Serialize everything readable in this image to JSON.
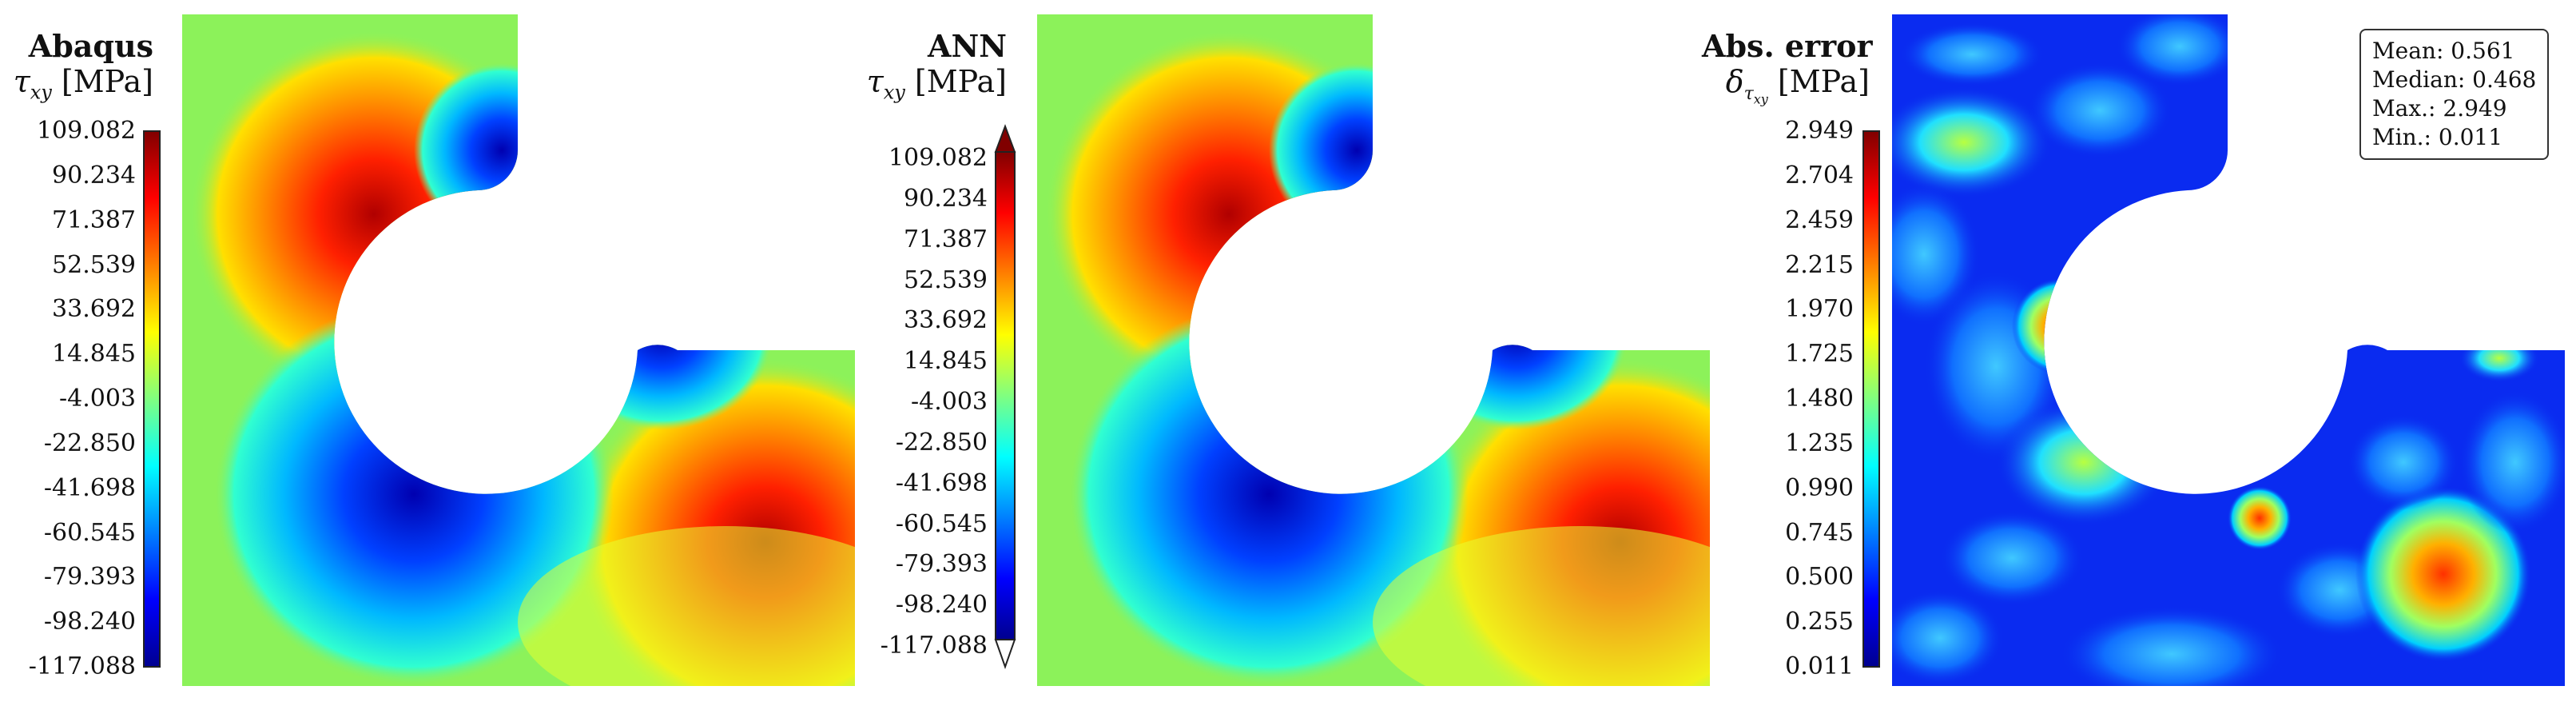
{
  "panels": [
    {
      "title": "Abaqus",
      "subtitle_var": "τ",
      "subtitle_sub": "xy",
      "unit": "[MPa]",
      "colorbar": {
        "ticks": [
          "109.082",
          "90.234",
          "71.387",
          "52.539",
          "33.692",
          "14.845",
          "-4.003",
          "-22.850",
          "-41.698",
          "-60.545",
          "-79.393",
          "-98.240",
          "-117.088"
        ],
        "min": -117.088,
        "max": 109.082,
        "extend": "none"
      }
    },
    {
      "title": "ANN",
      "subtitle_var": "τ",
      "subtitle_sub": "xy",
      "unit": "[MPa]",
      "colorbar": {
        "ticks": [
          "109.082",
          "90.234",
          "71.387",
          "52.539",
          "33.692",
          "14.845",
          "-4.003",
          "-22.850",
          "-41.698",
          "-60.545",
          "-79.393",
          "-98.240",
          "-117.088"
        ],
        "min": -117.088,
        "max": 109.082,
        "extend": "both"
      }
    },
    {
      "title": "Abs. error",
      "subtitle_var": "δ",
      "subtitle_sub": "τ",
      "subtitle_sub2": "xy",
      "unit": "[MPa]",
      "colorbar": {
        "ticks": [
          "2.949",
          "2.704",
          "2.459",
          "2.215",
          "1.970",
          "1.725",
          "1.480",
          "1.235",
          "0.990",
          "0.745",
          "0.500",
          "0.255",
          "0.011"
        ],
        "min": 0.011,
        "max": 2.949,
        "extend": "none"
      },
      "stats": [
        "Mean: 0.561",
        "Median: 0.468",
        "Max.: 2.949",
        "Min.: 0.011"
      ]
    }
  ],
  "chart_data": [
    {
      "type": "heatmap",
      "title": "Abaqus",
      "colorbar_label": "τxy [MPa]",
      "colormap": "jet",
      "range": [
        -117.088,
        109.082
      ]
    },
    {
      "type": "heatmap",
      "title": "ANN",
      "colorbar_label": "τxy [MPa]",
      "colormap": "jet",
      "range": [
        -117.088,
        109.082
      ]
    },
    {
      "type": "heatmap",
      "title": "Abs. error",
      "colorbar_label": "δτxy [MPa]",
      "colormap": "jet",
      "range": [
        0.011,
        2.949
      ],
      "stats": {
        "mean": 0.561,
        "median": 0.468,
        "max": 2.949,
        "min": 0.011
      }
    }
  ],
  "colors": {
    "background": "#ffffff",
    "field_base": "#8cf25a",
    "error_base": "#0a2bf0"
  }
}
